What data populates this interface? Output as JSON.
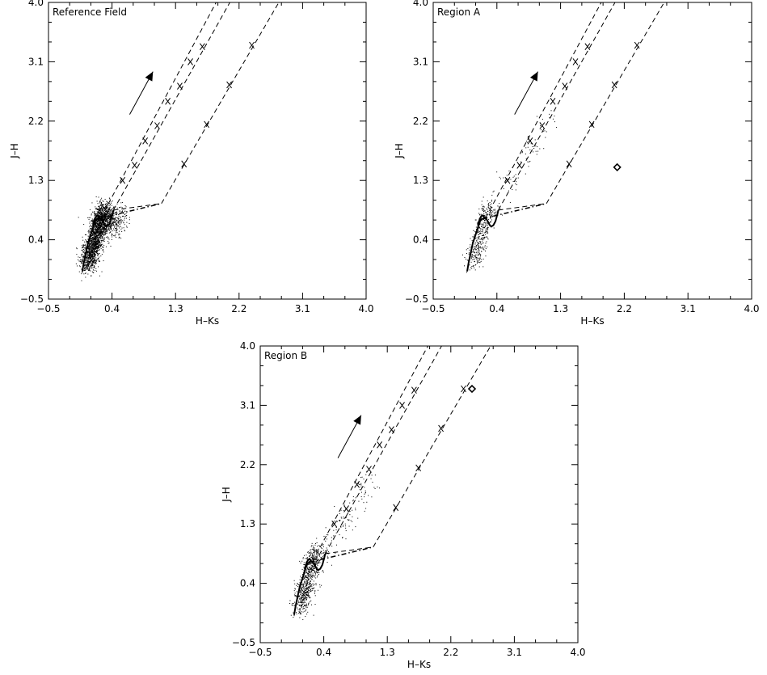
{
  "chart_data": [
    {
      "type": "scatter",
      "panel_label": "Reference Field",
      "xlabel": "H–Ks",
      "ylabel": "J–H",
      "xlim": [
        -0.5,
        4.0
      ],
      "ylim": [
        -0.5,
        4.0
      ],
      "xticks": [
        "−0.5",
        "0.4",
        "1.3",
        "2.2",
        "3.1",
        "4.0"
      ],
      "yticks": [
        "−0.5",
        "0.4",
        "1.3",
        "2.2",
        "3.1",
        "4.0"
      ],
      "grid": false,
      "scatter_cloud": {
        "density": "dense",
        "center": [
          0.17,
          0.5
        ],
        "x_range": [
          -0.05,
          0.55
        ],
        "y_range": [
          -0.05,
          1.0
        ]
      },
      "reddening_vector": {
        "from": [
          0.65,
          2.3
        ],
        "to": [
          0.98,
          2.95
        ]
      },
      "marked_diamond": null
    },
    {
      "type": "scatter",
      "panel_label": "Region A",
      "xlabel": "H–Ks",
      "ylabel": "J–H",
      "xlim": [
        -0.5,
        4.0
      ],
      "ylim": [
        -0.5,
        4.0
      ],
      "xticks": [
        "−0.5",
        "0.4",
        "1.3",
        "2.2",
        "3.1",
        "4.0"
      ],
      "yticks": [
        "−0.5",
        "0.4",
        "1.3",
        "2.2",
        "3.1",
        "4.0"
      ],
      "grid": false,
      "scatter_cloud": {
        "density": "sparse",
        "center": [
          0.35,
          0.9
        ],
        "x_range": [
          0.0,
          1.2
        ],
        "y_range": [
          0.1,
          2.3
        ]
      },
      "reddening_vector": {
        "from": [
          0.65,
          2.3
        ],
        "to": [
          0.98,
          2.95
        ]
      },
      "marked_diamond": [
        2.1,
        1.5
      ]
    },
    {
      "type": "scatter",
      "panel_label": "Region B",
      "xlabel": "H–Ks",
      "ylabel": "J–H",
      "xlim": [
        -0.5,
        4.0
      ],
      "ylim": [
        -0.5,
        4.0
      ],
      "xticks": [
        "−0.5",
        "0.4",
        "1.3",
        "2.2",
        "3.1",
        "4.0"
      ],
      "yticks": [
        "−0.5",
        "0.4",
        "1.3",
        "2.2",
        "3.1",
        "4.0"
      ],
      "grid": false,
      "scatter_cloud": {
        "density": "medium",
        "center": [
          0.3,
          0.75
        ],
        "x_range": [
          0.0,
          1.1
        ],
        "y_range": [
          0.0,
          2.0
        ]
      },
      "reddening_vector": {
        "from": [
          0.6,
          2.3
        ],
        "to": [
          0.93,
          2.95
        ]
      },
      "marked_diamond": [
        2.5,
        3.35
      ]
    }
  ],
  "shared_curves": {
    "main_sequence_dwarfs": [
      [
        -0.02,
        -0.08
      ],
      [
        0.0,
        0.05
      ],
      [
        0.03,
        0.2
      ],
      [
        0.06,
        0.35
      ],
      [
        0.1,
        0.48
      ],
      [
        0.13,
        0.58
      ],
      [
        0.15,
        0.65
      ],
      [
        0.17,
        0.7
      ],
      [
        0.2,
        0.72
      ],
      [
        0.24,
        0.73
      ],
      [
        0.26,
        0.7
      ],
      [
        0.28,
        0.66
      ],
      [
        0.3,
        0.62
      ],
      [
        0.32,
        0.6
      ],
      [
        0.35,
        0.62
      ],
      [
        0.38,
        0.68
      ],
      [
        0.41,
        0.8
      ],
      [
        0.42,
        0.85
      ]
    ],
    "giant_branch": [
      [
        0.13,
        0.62
      ],
      [
        0.16,
        0.72
      ],
      [
        0.18,
        0.76
      ],
      [
        0.2,
        0.77
      ],
      [
        0.22,
        0.74
      ],
      [
        0.24,
        0.72
      ]
    ],
    "ctts_locus": [
      [
        0.2,
        0.72
      ],
      [
        1.1,
        0.95
      ]
    ],
    "reddening_band_lines": [
      {
        "from": [
          0.42,
          0.85
        ],
        "to": [
          2.2,
          4.25
        ]
      },
      {
        "from": [
          0.24,
          0.73
        ],
        "to": [
          2.0,
          4.25
        ]
      },
      {
        "from": [
          1.1,
          0.95
        ],
        "to": [
          2.9,
          4.25
        ]
      }
    ],
    "band_lower_edge": [
      [
        0.42,
        0.85
      ],
      [
        1.1,
        0.95
      ]
    ],
    "extinction_markers": [
      [
        [
          0.72,
          1.53
        ],
        [
          1.04,
          2.13
        ],
        [
          1.36,
          2.73
        ],
        [
          1.68,
          3.33
        ]
      ],
      [
        [
          0.55,
          1.3
        ],
        [
          0.87,
          1.9
        ],
        [
          1.19,
          2.5
        ],
        [
          1.51,
          3.1
        ]
      ],
      [
        [
          1.42,
          1.55
        ],
        [
          1.74,
          2.15
        ],
        [
          2.06,
          2.75
        ],
        [
          2.38,
          3.35
        ]
      ]
    ]
  }
}
